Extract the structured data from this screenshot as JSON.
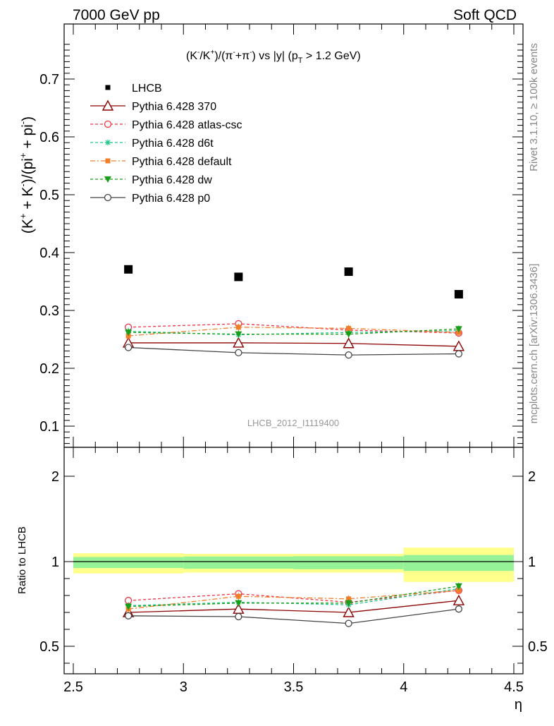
{
  "header": {
    "left": "7000 GeV pp",
    "right": "Soft QCD"
  },
  "side_labels": {
    "rivet": "Rivet 3.1.10, ≥ 100k events",
    "mcplots": "mcplots.cern.ch [arXiv:1306.3436]"
  },
  "chart_data": [
    {
      "type": "scatter",
      "panel": "main",
      "title": "(K⁻/K⁺)/(π⁻+π⁻) vs |y| (p_T > 1.2 GeV)",
      "title_parts": {
        "a": "(K",
        "b": "-",
        "c": "/K",
        "d": "+",
        "e": ")/(π",
        "f": "-",
        "g": "+π",
        "h": "-",
        "i": ") vs |y| (p",
        "j": "T",
        "k": " > 1.2 GeV)"
      },
      "ylabel": "(K⁺ + K⁻)/(pi⁺ + pi⁻)",
      "ylabel_parts": {
        "a": "(K",
        "b": "+",
        "c": " + K",
        "d": "-",
        "e": ")/(pi",
        "f": "+",
        "g": " + pi",
        "h": "-",
        "i": ")"
      },
      "xlabel": "η",
      "xlim": [
        2.5,
        4.5
      ],
      "ylim": [
        0.06,
        0.77
      ],
      "y_ticks": [
        "0.1",
        "0.2",
        "0.3",
        "0.4",
        "0.5",
        "0.6",
        "0.7"
      ],
      "watermark": "LHCB_2012_I1119400",
      "legend_position": "top-left",
      "x": [
        2.75,
        3.25,
        3.75,
        4.25
      ],
      "series": [
        {
          "name": "LHCB",
          "style": "data",
          "color": "#000000",
          "marker": "square-filled",
          "values": [
            0.371,
            0.358,
            0.367,
            0.328
          ]
        },
        {
          "name": "Pythia 6.428 370",
          "style": "solid",
          "color": "#8b0000",
          "marker": "triangle-open",
          "values": [
            0.244,
            0.244,
            0.243,
            0.238
          ]
        },
        {
          "name": "Pythia 6.428 atlas-csc",
          "style": "dashed",
          "color": "#ee3344",
          "marker": "circle-open",
          "values": [
            0.271,
            0.277,
            0.266,
            0.261
          ]
        },
        {
          "name": "Pythia 6.428 d6t",
          "style": "dashed",
          "color": "#22c88a",
          "marker": "star",
          "values": [
            0.264,
            0.258,
            0.262,
            0.265
          ]
        },
        {
          "name": "Pythia 6.428 default",
          "style": "dashdot",
          "color": "#f07f2a",
          "marker": "square-filled",
          "values": [
            0.256,
            0.271,
            0.269,
            0.262
          ]
        },
        {
          "name": "Pythia 6.428 dw",
          "style": "dashed",
          "color": "#1a9e1a",
          "marker": "triangle-down-filled",
          "values": [
            0.262,
            0.259,
            0.259,
            0.268
          ]
        },
        {
          "name": "Pythia 6.428 p0",
          "style": "solid",
          "color": "#444444",
          "marker": "circle-open",
          "values": [
            0.236,
            0.227,
            0.223,
            0.225
          ]
        }
      ]
    },
    {
      "type": "scatter",
      "panel": "ratio",
      "ylabel": "Ratio to LHCB",
      "xlabel": "η",
      "xlim": [
        2.5,
        4.5
      ],
      "ylim": [
        0.35,
        2.3
      ],
      "y_ticks": [
        "0.5",
        "1",
        "2"
      ],
      "x_ticks": [
        "2.5",
        "3",
        "3.5",
        "4",
        "4.5"
      ],
      "bands": [
        {
          "x": [
            2.5,
            3.0
          ],
          "inner": [
            0.962,
            1.038
          ],
          "outer": [
            0.93,
            1.07
          ]
        },
        {
          "x": [
            3.0,
            3.5
          ],
          "inner": [
            0.958,
            1.042
          ],
          "outer": [
            0.935,
            1.065
          ]
        },
        {
          "x": [
            3.5,
            4.0
          ],
          "inner": [
            0.955,
            1.045
          ],
          "outer": [
            0.935,
            1.065
          ]
        },
        {
          "x": [
            4.0,
            4.5
          ],
          "inner": [
            0.945,
            1.055
          ],
          "outer": [
            0.88,
            1.12
          ]
        }
      ],
      "x": [
        2.75,
        3.25,
        3.75,
        4.25
      ],
      "series": [
        {
          "name": "Pythia 6.428 370",
          "color": "#8b0000",
          "style": "solid",
          "marker": "triangle-open",
          "values": [
            0.7,
            0.72,
            0.7,
            0.77
          ]
        },
        {
          "name": "Pythia 6.428 atlas-csc",
          "color": "#ee3344",
          "style": "dashed",
          "marker": "circle-open",
          "values": [
            0.77,
            0.81,
            0.76,
            0.83
          ]
        },
        {
          "name": "Pythia 6.428 d6t",
          "color": "#22c88a",
          "style": "dashed",
          "marker": "star",
          "values": [
            0.74,
            0.76,
            0.745,
            0.84
          ]
        },
        {
          "name": "Pythia 6.428 default",
          "color": "#f07f2a",
          "style": "dashdot",
          "marker": "square-filled",
          "values": [
            0.72,
            0.795,
            0.78,
            0.83
          ]
        },
        {
          "name": "Pythia 6.428 dw",
          "color": "#1a9e1a",
          "style": "dashed",
          "marker": "triangle-down-filled",
          "values": [
            0.735,
            0.755,
            0.755,
            0.855
          ]
        },
        {
          "name": "Pythia 6.428 p0",
          "color": "#444444",
          "style": "solid",
          "marker": "circle-open",
          "values": [
            0.68,
            0.675,
            0.635,
            0.72
          ]
        }
      ]
    }
  ]
}
